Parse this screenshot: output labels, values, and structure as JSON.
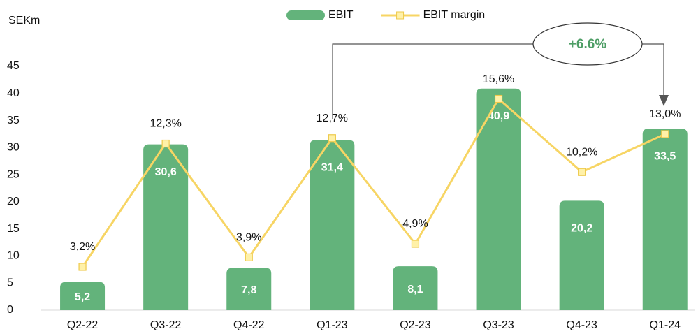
{
  "chart_data": {
    "type": "bar",
    "y_label": "SEKm",
    "annotation": "+6.6%",
    "categories": [
      "Q2-22",
      "Q3-22",
      "Q4-22",
      "Q1-23",
      "Q2-23",
      "Q3-23",
      "Q4-23",
      "Q1-24"
    ],
    "series": [
      {
        "name": "EBIT",
        "type": "bar",
        "color": "#63b37b",
        "values": [
          5.2,
          30.6,
          7.8,
          31.4,
          8.1,
          40.9,
          20.2,
          33.5
        ],
        "value_labels": [
          "5,2",
          "30,6",
          "7,8",
          "31,4",
          "8,1",
          "40,9",
          "20,2",
          "33,5"
        ]
      },
      {
        "name": "EBIT margin",
        "type": "line",
        "axis": "y2",
        "color": "#f7d564",
        "values": [
          3.2,
          12.3,
          3.9,
          12.7,
          4.9,
          15.6,
          10.2,
          13.0
        ],
        "value_labels": [
          "3,2%",
          "12,3%",
          "3,9%",
          "12,7%",
          "4,9%",
          "15,6%",
          "10,2%",
          "13,0%"
        ]
      }
    ],
    "ylim": [
      0,
      45
    ],
    "yticks": [
      0,
      5,
      10,
      15,
      20,
      25,
      30,
      35,
      40,
      45
    ],
    "y2lim": [
      0,
      18
    ],
    "grid": false,
    "legend": "top"
  }
}
